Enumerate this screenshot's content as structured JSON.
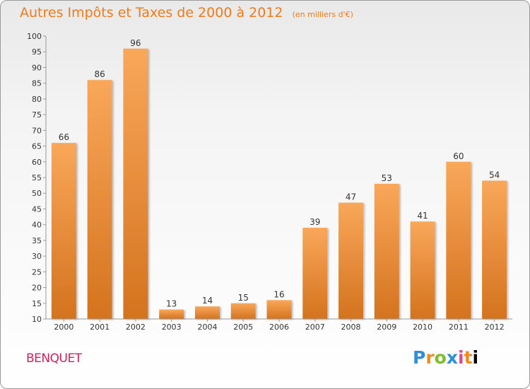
{
  "header": {
    "title": "Autres Impôts et Taxes de 2000 à 2012",
    "subtitle": "(en milliers d'€)"
  },
  "footer": {
    "commune": "BENQUET",
    "logo_text": "Proxiti"
  },
  "colors": {
    "bar_top": "#f9a75a",
    "bar_bottom": "#d4731e",
    "title": "#f07a1a",
    "commune": "#d2205a"
  },
  "chart_data": {
    "type": "bar",
    "title": "Autres Impôts et Taxes de 2000 à 2012",
    "subtitle": "(en milliers d'€)",
    "categories": [
      "2000",
      "2001",
      "2002",
      "2003",
      "2004",
      "2005",
      "2006",
      "2007",
      "2008",
      "2009",
      "2010",
      "2011",
      "2012"
    ],
    "values": [
      66,
      86,
      96,
      13,
      14,
      15,
      16,
      39,
      47,
      53,
      41,
      60,
      54
    ],
    "ylim": [
      10,
      100
    ],
    "yticks": [
      10,
      15,
      20,
      25,
      30,
      35,
      40,
      45,
      50,
      55,
      60,
      65,
      70,
      75,
      80,
      85,
      90,
      95,
      100
    ],
    "grid": false,
    "data_labels": true
  }
}
